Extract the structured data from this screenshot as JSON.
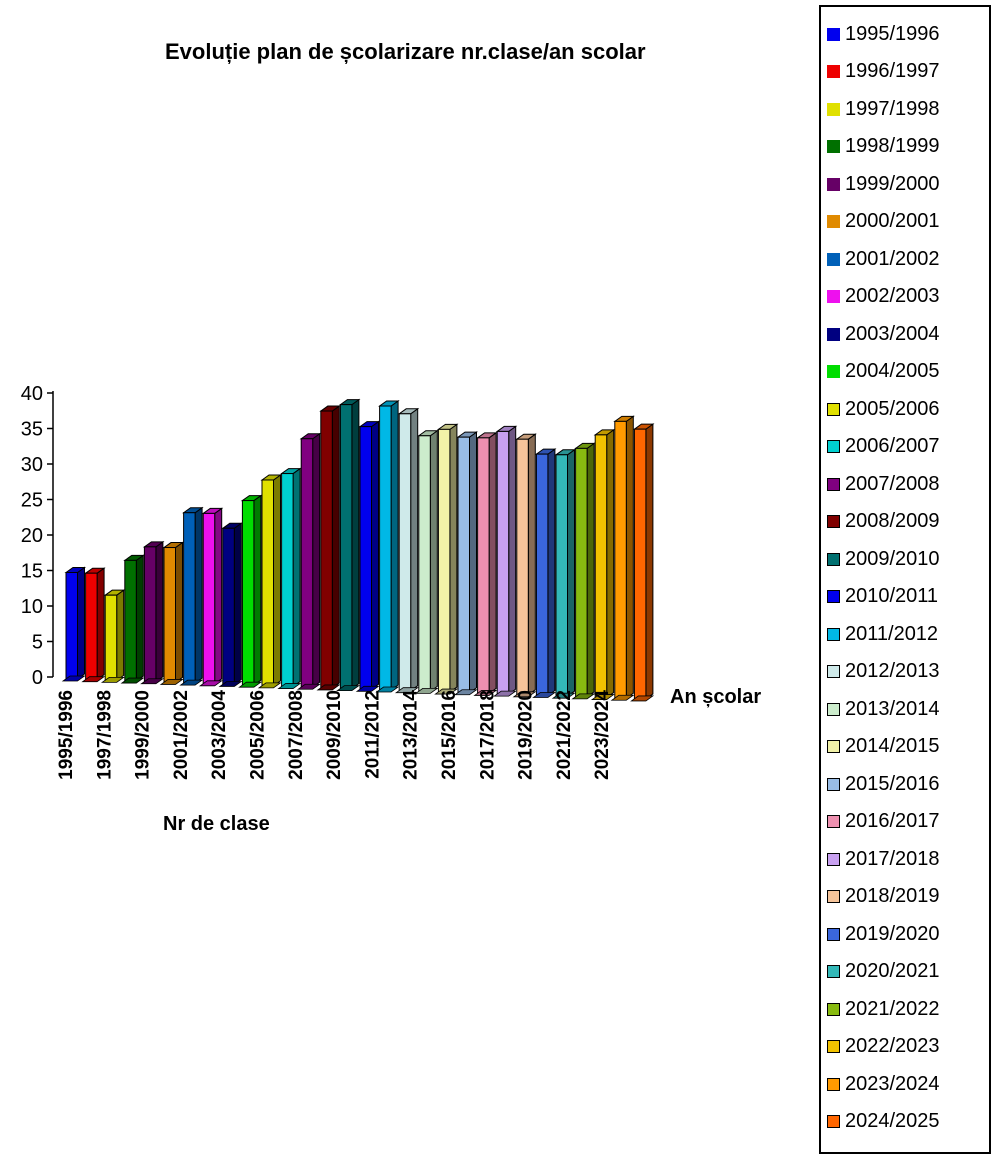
{
  "chart_data": {
    "type": "bar",
    "title": "Evoluție plan de școlarizare nr.clase/an scolar",
    "xlabel": "Nr de clase",
    "depth_axis_label": "An școlar",
    "ylim": [
      0,
      40
    ],
    "y_ticks": [
      "0",
      "5",
      "10",
      "15",
      "20",
      "25",
      "30",
      "35",
      "40"
    ],
    "x_tick_labels": [
      "1995/1996",
      "1997/1998",
      "1999/2000",
      "2001/2002",
      "2003/2004",
      "2005/2006",
      "2007/2008",
      "2009/2010",
      "2011/2012",
      "2013/2014",
      "2015/2016",
      "2017/2018",
      "2019/2020",
      "2021/2022",
      "2023/2024"
    ],
    "legend_position": "right",
    "series": [
      {
        "name": "1995/1996",
        "value": 15,
        "color": "#0000ee"
      },
      {
        "name": "1996/1997",
        "value": 15,
        "color": "#ee0000"
      },
      {
        "name": "1997/1998",
        "value": 12,
        "color": "#e0e000"
      },
      {
        "name": "1998/1999",
        "value": 17,
        "color": "#007000"
      },
      {
        "name": "1999/2000",
        "value": 19,
        "color": "#660066"
      },
      {
        "name": "2000/2001",
        "value": 19,
        "color": "#e08a00"
      },
      {
        "name": "2001/2002",
        "value": 24,
        "color": "#0060b8"
      },
      {
        "name": "2002/2003",
        "value": 24,
        "color": "#ee10ee"
      },
      {
        "name": "2003/2004",
        "value": 22,
        "color": "#000080"
      },
      {
        "name": "2004/2005",
        "value": 26,
        "color": "#00dd00"
      },
      {
        "name": "2005/2006",
        "value": 29,
        "color": "#e0e000"
      },
      {
        "name": "2006/2007",
        "value": 30,
        "color": "#00d0d0"
      },
      {
        "name": "2007/2008",
        "value": 35,
        "color": "#800080"
      },
      {
        "name": "2008/2009",
        "value": 39,
        "color": "#800000"
      },
      {
        "name": "2009/2010",
        "value": 40,
        "color": "#007070"
      },
      {
        "name": "2010/2011",
        "value": 37,
        "color": "#0000ee"
      },
      {
        "name": "2011/2012",
        "value": 40,
        "color": "#00b8e6"
      },
      {
        "name": "2012/2013",
        "value": 39,
        "color": "#cfeaea"
      },
      {
        "name": "2013/2014",
        "value": 36,
        "color": "#cceccc"
      },
      {
        "name": "2014/2015",
        "value": 37,
        "color": "#f2f2a8"
      },
      {
        "name": "2015/2016",
        "value": 36,
        "color": "#99bde6"
      },
      {
        "name": "2016/2017",
        "value": 36,
        "color": "#ee90b0"
      },
      {
        "name": "2017/2018",
        "value": 37,
        "color": "#c8a0f0"
      },
      {
        "name": "2018/2019",
        "value": 36,
        "color": "#f6c49a"
      },
      {
        "name": "2019/2020",
        "value": 34,
        "color": "#3a66dd"
      },
      {
        "name": "2020/2021",
        "value": 34,
        "color": "#33b8b8"
      },
      {
        "name": "2021/2022",
        "value": 35,
        "color": "#88bb10"
      },
      {
        "name": "2022/2023",
        "value": 37,
        "color": "#f2c200"
      },
      {
        "name": "2023/2024",
        "value": 39,
        "color": "#ff9a00"
      },
      {
        "name": "2024/2025",
        "value": 38,
        "color": "#ff6600"
      }
    ]
  }
}
